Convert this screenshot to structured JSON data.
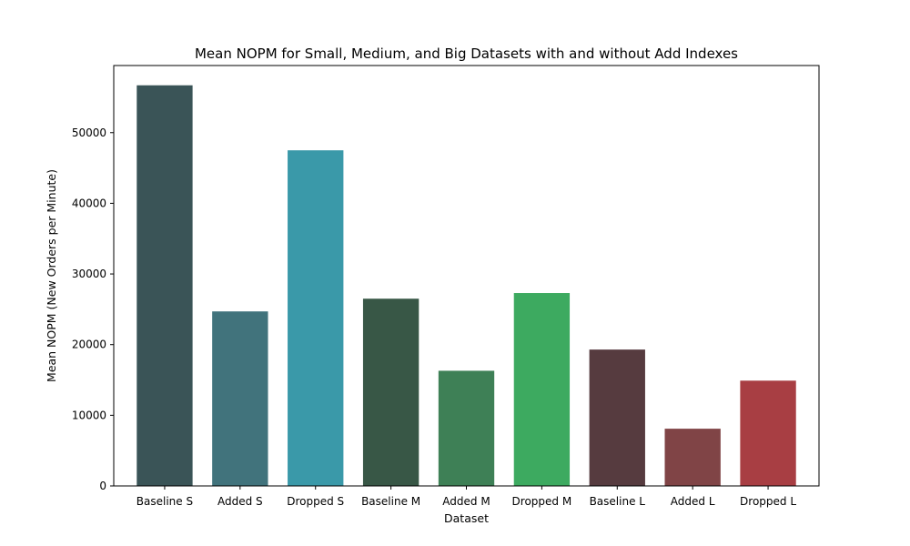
{
  "chart_data": {
    "type": "bar",
    "title": "Mean NOPM for Small, Medium, and Big Datasets with and without Add Indexes",
    "xlabel": "Dataset",
    "ylabel": "Mean NOPM (New Orders per Minute)",
    "categories": [
      "Baseline S",
      "Added S",
      "Dropped S",
      "Baseline M",
      "Added M",
      "Dropped M",
      "Baseline L",
      "Added L",
      "Dropped L"
    ],
    "values": [
      56700,
      24700,
      47500,
      26500,
      16300,
      27300,
      19300,
      8100,
      14900
    ],
    "colors": [
      "#3a5457",
      "#41737c",
      "#3a99a9",
      "#385746",
      "#3e8056",
      "#3daa60",
      "#563b3f",
      "#804446",
      "#a83e43"
    ],
    "ylim": [
      0,
      59500
    ],
    "yticks": [
      0,
      10000,
      20000,
      30000,
      40000,
      50000
    ],
    "grid": false,
    "legend": "none"
  }
}
